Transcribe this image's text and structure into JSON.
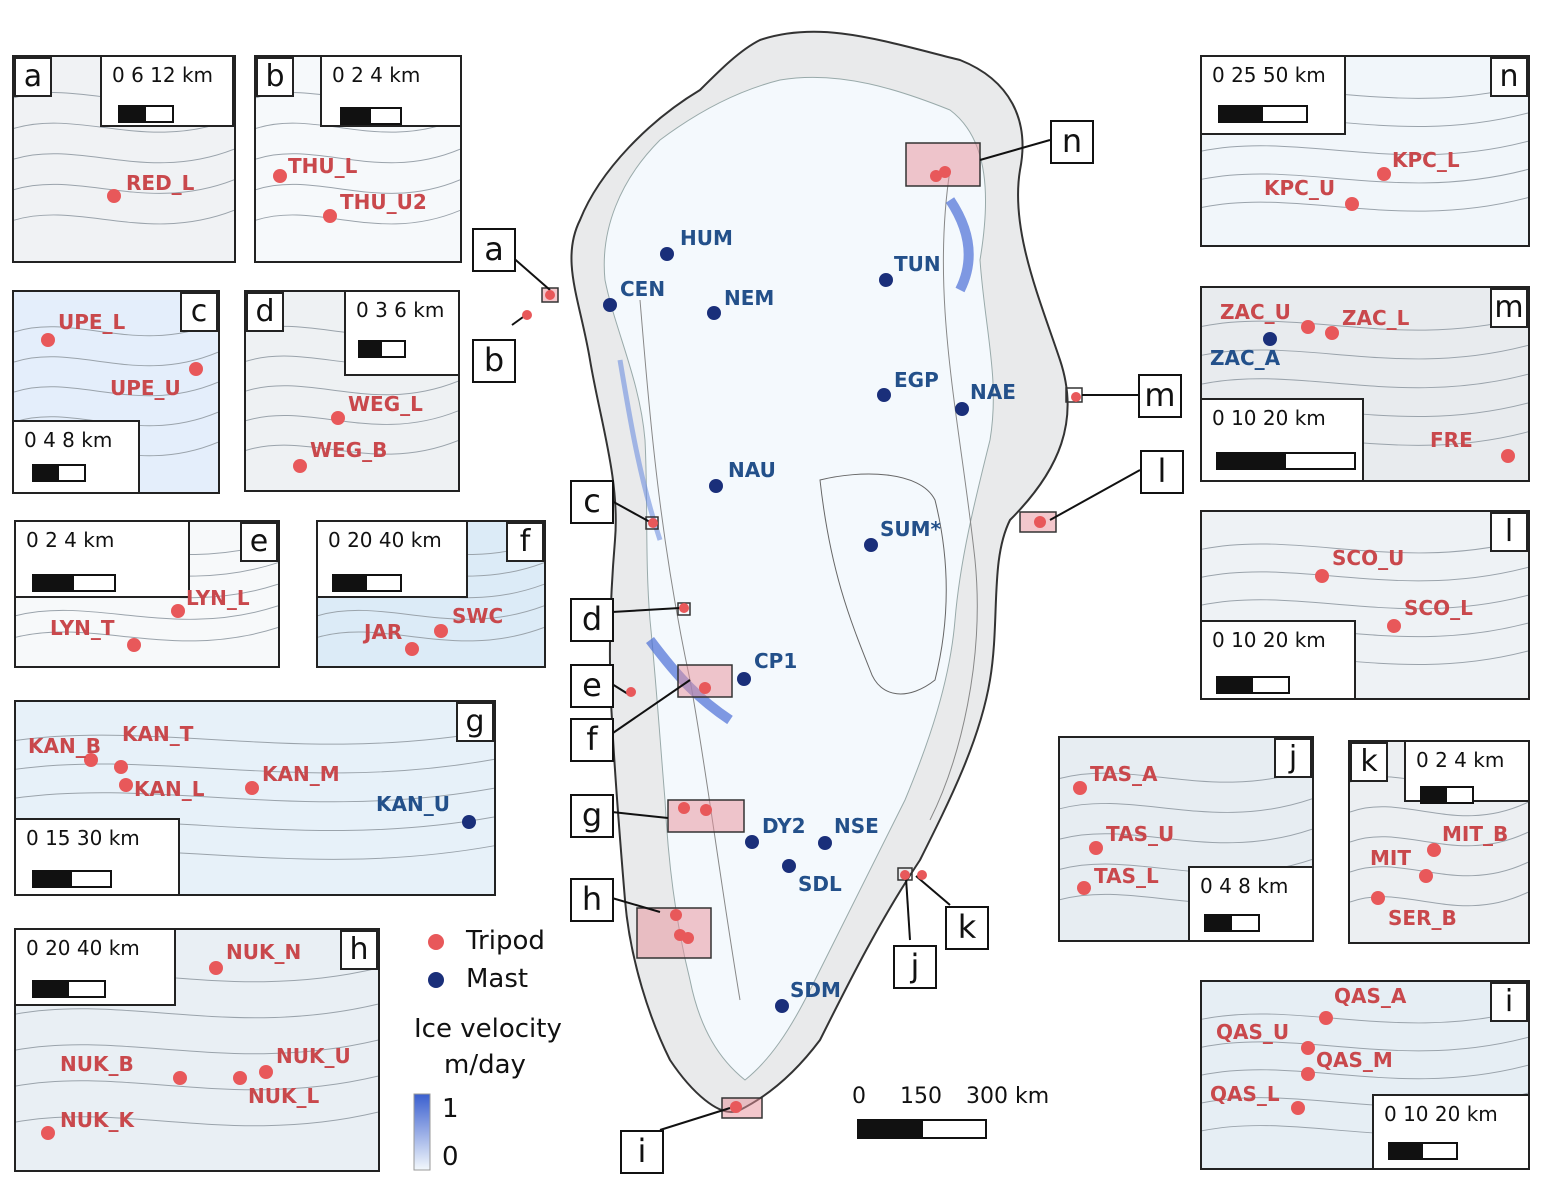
{
  "legend": {
    "tripod_label": "Tripod",
    "mast_label": "Mast",
    "velocity_title_line1": "Ice velocity",
    "velocity_title_line2": "m/day",
    "velocity_max": "1",
    "velocity_min": "0",
    "colors": {
      "tripod": "#e8585a",
      "mast": "#1a2f7a",
      "velocity_high": "#3a5fcf",
      "velocity_low": "#f3f8fc"
    }
  },
  "main_scale": {
    "t0": "0",
    "t1": "150",
    "t2": "300 km"
  },
  "main_sites": {
    "mast": [
      "HUM",
      "CEN",
      "NEM",
      "TUN",
      "EGP",
      "NAE",
      "NAU",
      "SUM*",
      "CP1",
      "DY2",
      "NSE",
      "SDL",
      "SDM"
    ]
  },
  "callouts": [
    "a",
    "b",
    "c",
    "d",
    "e",
    "f",
    "g",
    "h",
    "i",
    "j",
    "k",
    "l",
    "m",
    "n"
  ],
  "insets": {
    "a": {
      "letter": "a",
      "scale": "0   6  12 km",
      "sites": [
        {
          "name": "RED_L",
          "type": "tripod"
        }
      ]
    },
    "b": {
      "letter": "b",
      "scale": "0   2   4 km",
      "sites": [
        {
          "name": "THU_L",
          "type": "tripod"
        },
        {
          "name": "THU_U2",
          "type": "tripod"
        }
      ]
    },
    "c": {
      "letter": "c",
      "scale": "0   4   8 km",
      "sites": [
        {
          "name": "UPE_L",
          "type": "tripod"
        },
        {
          "name": "UPE_U",
          "type": "tripod"
        }
      ]
    },
    "d": {
      "letter": "d",
      "scale": "0  3  6 km",
      "sites": [
        {
          "name": "WEG_L",
          "type": "tripod"
        },
        {
          "name": "WEG_B",
          "type": "tripod"
        }
      ]
    },
    "e": {
      "letter": "e",
      "scale": "0     2      4 km",
      "sites": [
        {
          "name": "LYN_L",
          "type": "tripod"
        },
        {
          "name": "LYN_T",
          "type": "tripod"
        }
      ]
    },
    "f": {
      "letter": "f",
      "scale": "0  20  40 km",
      "sites": [
        {
          "name": "JAR",
          "type": "tripod"
        },
        {
          "name": "SWC",
          "type": "tripod"
        }
      ]
    },
    "g": {
      "letter": "g",
      "scale": "0    15    30 km",
      "sites": [
        {
          "name": "KAN_B",
          "type": "tripod"
        },
        {
          "name": "KAN_T",
          "type": "tripod"
        },
        {
          "name": "KAN_L",
          "type": "tripod"
        },
        {
          "name": "KAN_M",
          "type": "tripod"
        },
        {
          "name": "KAN_U",
          "type": "mast"
        }
      ]
    },
    "h": {
      "letter": "h",
      "scale": "0   20   40 km",
      "sites": [
        {
          "name": "NUK_N",
          "type": "tripod"
        },
        {
          "name": "NUK_B",
          "type": "tripod"
        },
        {
          "name": "NUK_U",
          "type": "tripod"
        },
        {
          "name": "NUK_L",
          "type": "tripod"
        },
        {
          "name": "NUK_K",
          "type": "tripod"
        }
      ]
    },
    "i": {
      "letter": "i",
      "scale": "0   10   20 km",
      "sites": [
        {
          "name": "QAS_A",
          "type": "tripod"
        },
        {
          "name": "QAS_U",
          "type": "tripod"
        },
        {
          "name": "QAS_M",
          "type": "tripod"
        },
        {
          "name": "QAS_L",
          "type": "tripod"
        }
      ]
    },
    "j": {
      "letter": "j",
      "scale": "0   4   8 km",
      "sites": [
        {
          "name": "TAS_A",
          "type": "tripod"
        },
        {
          "name": "TAS_U",
          "type": "tripod"
        },
        {
          "name": "TAS_L",
          "type": "tripod"
        }
      ]
    },
    "k": {
      "letter": "k",
      "scale": "0  2   4 km",
      "sites": [
        {
          "name": "MIT_B",
          "type": "tripod"
        },
        {
          "name": "MIT",
          "type": "tripod"
        },
        {
          "name": "SER_B",
          "type": "tripod"
        }
      ]
    },
    "l": {
      "letter": "l",
      "scale": "0   10   20 km",
      "sites": [
        {
          "name": "SCO_U",
          "type": "tripod"
        },
        {
          "name": "SCO_L",
          "type": "tripod"
        }
      ]
    },
    "m": {
      "letter": "m",
      "scale": "0          10          20 km",
      "sites": [
        {
          "name": "ZAC_U",
          "type": "tripod"
        },
        {
          "name": "ZAC_L",
          "type": "tripod"
        },
        {
          "name": "ZAC_A",
          "type": "mast"
        },
        {
          "name": "FRE",
          "type": "tripod"
        }
      ]
    },
    "n": {
      "letter": "n",
      "scale": "0      25      50 km",
      "sites": [
        {
          "name": "KPC_L",
          "type": "tripod"
        },
        {
          "name": "KPC_U",
          "type": "tripod"
        }
      ]
    }
  }
}
